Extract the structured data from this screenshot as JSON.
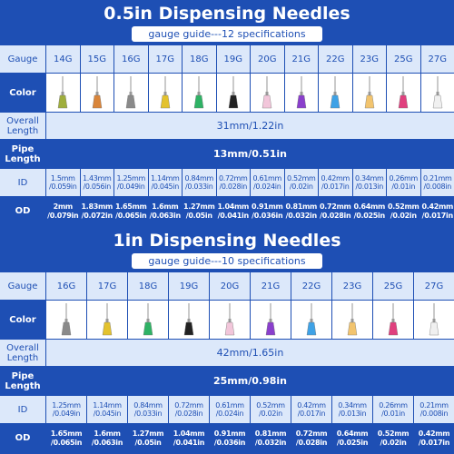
{
  "sections": [
    {
      "title": "0.5in Dispensing Needles",
      "subtitle": "gauge guide---12 specifications",
      "labels": {
        "gauge": "Gauge",
        "color": "Color",
        "overall": "Overall Length",
        "pipe": "Pipe Length",
        "id": "ID",
        "od": "OD"
      },
      "gauges": [
        "14G",
        "15G",
        "16G",
        "17G",
        "18G",
        "19G",
        "20G",
        "21G",
        "22G",
        "23G",
        "25G",
        "27G"
      ],
      "colors": [
        "#9fae3c",
        "#d9853a",
        "#8a8a8a",
        "#e3c22e",
        "#2fb265",
        "#222222",
        "#f2c6da",
        "#8a3fcc",
        "#3fa2e6",
        "#f2c46e",
        "#e0407e",
        "#f0f0f0"
      ],
      "overall_length": "31mm/1.22in",
      "pipe_length": "13mm/0.51in",
      "id": [
        {
          "mm": "1.5mm",
          "in": "/0.059in"
        },
        {
          "mm": "1.43mm",
          "in": "/0.056in"
        },
        {
          "mm": "1.25mm",
          "in": "/0.049in"
        },
        {
          "mm": "1.14mm",
          "in": "/0.045in"
        },
        {
          "mm": "0.84mm",
          "in": "/0.033in"
        },
        {
          "mm": "0.72mm",
          "in": "/0.028in"
        },
        {
          "mm": "0.61mm",
          "in": "/0.024in"
        },
        {
          "mm": "0.52mm",
          "in": "/0.02in"
        },
        {
          "mm": "0.42mm",
          "in": "/0.017in"
        },
        {
          "mm": "0.34mm",
          "in": "/0.013in"
        },
        {
          "mm": "0.26mm",
          "in": "/0.01in"
        },
        {
          "mm": "0.21mm",
          "in": "/0.008in"
        }
      ],
      "od": [
        {
          "mm": "2mm",
          "in": "/0.079in"
        },
        {
          "mm": "1.83mm",
          "in": "/0.072in"
        },
        {
          "mm": "1.65mm",
          "in": "/0.065in"
        },
        {
          "mm": "1.6mm",
          "in": "/0.063in"
        },
        {
          "mm": "1.27mm",
          "in": "/0.05in"
        },
        {
          "mm": "1.04mm",
          "in": "/0.041in"
        },
        {
          "mm": "0.91mm",
          "in": "/0.036in"
        },
        {
          "mm": "0.81mm",
          "in": "/0.032in"
        },
        {
          "mm": "0.72mm",
          "in": "/0.028in"
        },
        {
          "mm": "0.64mm",
          "in": "/0.025in"
        },
        {
          "mm": "0.52mm",
          "in": "/0.02in"
        },
        {
          "mm": "0.42mm",
          "in": "/0.017in"
        }
      ]
    },
    {
      "title": "1in Dispensing Needles",
      "subtitle": "gauge guide---10 specifications",
      "labels": {
        "gauge": "Gauge",
        "color": "Color",
        "overall": "Overall Length",
        "pipe": "Pipe Length",
        "id": "ID",
        "od": "OD"
      },
      "gauges": [
        "16G",
        "17G",
        "18G",
        "19G",
        "20G",
        "21G",
        "22G",
        "23G",
        "25G",
        "27G"
      ],
      "colors": [
        "#8a8a8a",
        "#e3c22e",
        "#2fb265",
        "#222222",
        "#f2c6da",
        "#8a3fcc",
        "#3fa2e6",
        "#f2c46e",
        "#e0407e",
        "#f0f0f0"
      ],
      "overall_length": "42mm/1.65in",
      "pipe_length": "25mm/0.98in",
      "id": [
        {
          "mm": "1.25mm",
          "in": "/0.049in"
        },
        {
          "mm": "1.14mm",
          "in": "/0.045in"
        },
        {
          "mm": "0.84mm",
          "in": "/0.033in"
        },
        {
          "mm": "0.72mm",
          "in": "/0.028in"
        },
        {
          "mm": "0.61mm",
          "in": "/0.024in"
        },
        {
          "mm": "0.52mm",
          "in": "/0.02in"
        },
        {
          "mm": "0.42mm",
          "in": "/0.017in"
        },
        {
          "mm": "0.34mm",
          "in": "/0.013in"
        },
        {
          "mm": "0.26mm",
          "in": "/0.01in"
        },
        {
          "mm": "0.21mm",
          "in": "/0.008in"
        }
      ],
      "od": [
        {
          "mm": "1.65mm",
          "in": "/0.065in"
        },
        {
          "mm": "1.6mm",
          "in": "/0.063in"
        },
        {
          "mm": "1.27mm",
          "in": "/0.05in"
        },
        {
          "mm": "1.04mm",
          "in": "/0.041in"
        },
        {
          "mm": "0.91mm",
          "in": "/0.036in"
        },
        {
          "mm": "0.81mm",
          "in": "/0.032in"
        },
        {
          "mm": "0.72mm",
          "in": "/0.028in"
        },
        {
          "mm": "0.64mm",
          "in": "/0.025in"
        },
        {
          "mm": "0.52mm",
          "in": "/0.02in"
        },
        {
          "mm": "0.42mm",
          "in": "/0.017in"
        }
      ]
    }
  ]
}
